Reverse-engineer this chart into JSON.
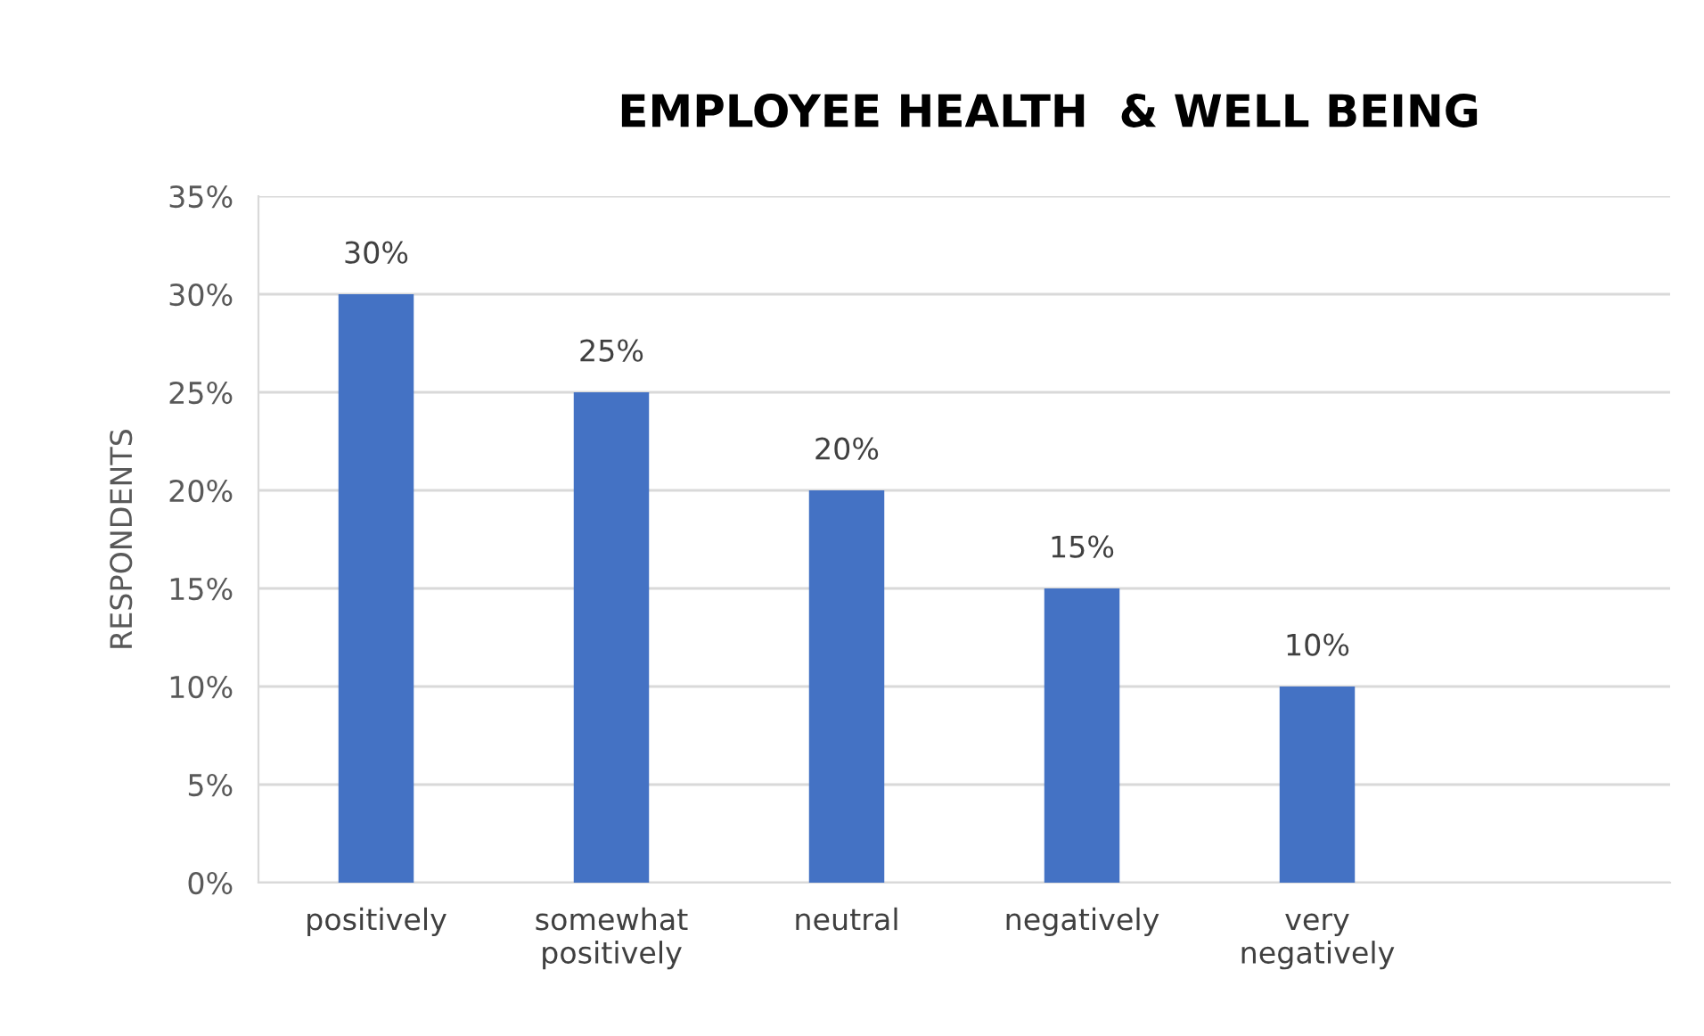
{
  "chart_data": {
    "type": "bar",
    "title": "EMPLOYEE HEALTH  & WELL BEING",
    "ylabel": "RESPONDENTS",
    "categories": [
      "positively",
      "somewhat\npositively",
      "neutral",
      "negatively",
      "very\nnegatively",
      null
    ],
    "values": [
      30,
      25,
      20,
      15,
      10,
      null
    ],
    "value_labels": [
      "30%",
      "25%",
      "20%",
      "15%",
      "10%",
      null
    ],
    "color": "#4472c4",
    "ylim": [
      0,
      35
    ],
    "yticks": [
      {
        "value": 0,
        "label": "0%"
      },
      {
        "value": 5,
        "label": "5%"
      },
      {
        "value": 10,
        "label": "10%"
      },
      {
        "value": 15,
        "label": "15%"
      },
      {
        "value": 20,
        "label": "20%"
      },
      {
        "value": 25,
        "label": "25%"
      },
      {
        "value": 30,
        "label": "30%"
      },
      {
        "value": 35,
        "label": "35%"
      }
    ],
    "grid": "y",
    "legend": false
  }
}
